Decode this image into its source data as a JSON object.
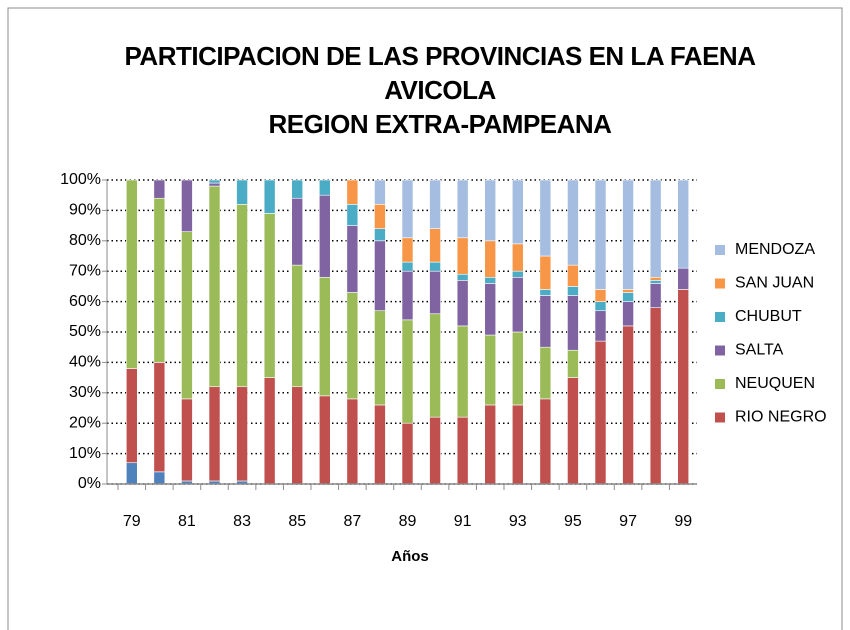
{
  "chart_data": {
    "type": "stacked_bar",
    "title": [
      "PARTICIPACION DE LAS PROVINCIAS EN LA FAENA",
      "AVICOLA",
      "REGION EXTRA-PAMPEANA"
    ],
    "x_label": "Años",
    "categories": [
      "79",
      null,
      "81",
      null,
      "83",
      null,
      "85",
      null,
      "87",
      null,
      "89",
      null,
      "91",
      null,
      "93",
      null,
      "95",
      null,
      "97",
      null,
      "99"
    ],
    "series": [
      {
        "name": null,
        "color": "#4f81bd",
        "values": [
          7,
          4,
          1,
          1,
          1,
          0,
          0,
          0,
          0,
          0,
          0,
          0,
          0,
          0,
          0,
          0,
          0,
          0,
          0,
          0,
          0
        ]
      },
      {
        "name": "RIO NEGRO",
        "color": "#c0504d",
        "values": [
          31,
          36,
          27,
          31,
          31,
          35,
          32,
          29,
          28,
          26,
          20,
          22,
          22,
          26,
          26,
          28,
          35,
          47,
          52,
          58,
          64
        ]
      },
      {
        "name": "NEUQUEN",
        "color": "#9bbb59",
        "values": [
          62,
          54,
          55,
          66,
          60,
          54,
          40,
          39,
          35,
          31,
          34,
          34,
          30,
          23,
          24,
          17,
          9,
          0,
          0,
          0,
          0
        ]
      },
      {
        "name": "SALTA",
        "color": "#8064a2",
        "values": [
          0,
          6,
          17,
          1,
          0,
          0,
          22,
          27,
          22,
          23,
          16,
          14,
          15,
          17,
          18,
          17,
          18,
          10,
          8,
          8,
          7
        ]
      },
      {
        "name": "CHUBUT",
        "color": "#4bacc6",
        "values": [
          0,
          0,
          0,
          1,
          8,
          11,
          6,
          5,
          7,
          4,
          3,
          3,
          2,
          2,
          2,
          2,
          3,
          3,
          3,
          1,
          0
        ]
      },
      {
        "name": "SAN JUAN",
        "color": "#f79646",
        "values": [
          0,
          0,
          0,
          0,
          0,
          0,
          0,
          0,
          8,
          8,
          8,
          11,
          12,
          12,
          9,
          11,
          7,
          4,
          1,
          1,
          0
        ]
      },
      {
        "name": "MENDOZA",
        "color": "#a4bde0",
        "values": [
          0,
          0,
          0,
          0,
          0,
          0,
          0,
          0,
          0,
          8,
          19,
          16,
          19,
          20,
          21,
          25,
          28,
          36,
          36,
          32,
          29
        ]
      }
    ],
    "ylim": [
      0,
      100
    ],
    "yticks": [
      {
        "value": 0,
        "label": "0%"
      },
      {
        "value": 10,
        "label": "10%"
      },
      {
        "value": 20,
        "label": "20%"
      },
      {
        "value": 30,
        "label": "30%"
      },
      {
        "value": 40,
        "label": "40%"
      },
      {
        "value": 50,
        "label": "50%"
      },
      {
        "value": 60,
        "label": "60%"
      },
      {
        "value": 70,
        "label": "70%"
      },
      {
        "value": 80,
        "label": "80%"
      },
      {
        "value": 90,
        "label": "90%"
      },
      {
        "value": 100,
        "label": "100%"
      }
    ],
    "grid": true,
    "legend": "right"
  }
}
